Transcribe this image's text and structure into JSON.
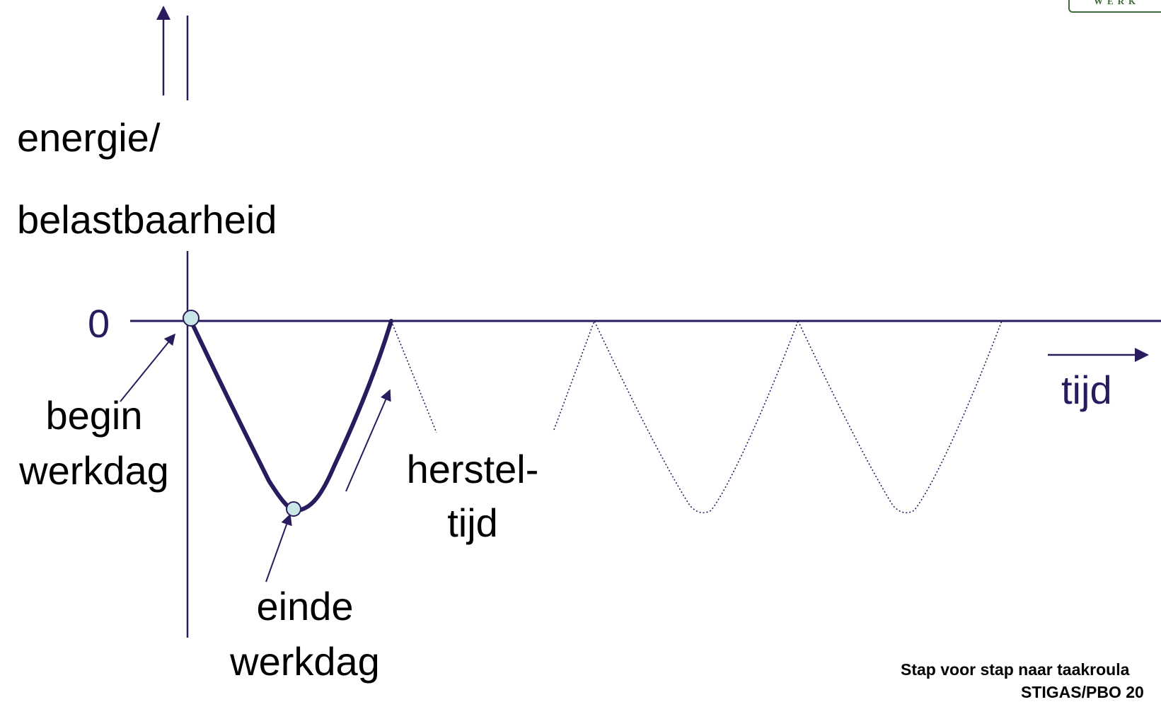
{
  "labels": {
    "y_axis_line1": "energie/",
    "y_axis_line2": "belastbaarheid",
    "zero": "0",
    "time": "tijd",
    "begin_line1": "begin",
    "begin_line2": "werkdag",
    "end_line1": "einde",
    "end_line2": "werkdag",
    "recovery_line1": "herstel-",
    "recovery_line2": "tijd"
  },
  "footer": {
    "line1": "Stap voor stap naar taakroula",
    "line2": "STIGAS/PBO 20"
  },
  "logo": {
    "text": "WERK"
  },
  "colors": {
    "axis": "#2a1a5e",
    "curve": "#2a1a5e",
    "marker_fill": "#c9e7e6",
    "logo": "#3f6b3a"
  }
}
